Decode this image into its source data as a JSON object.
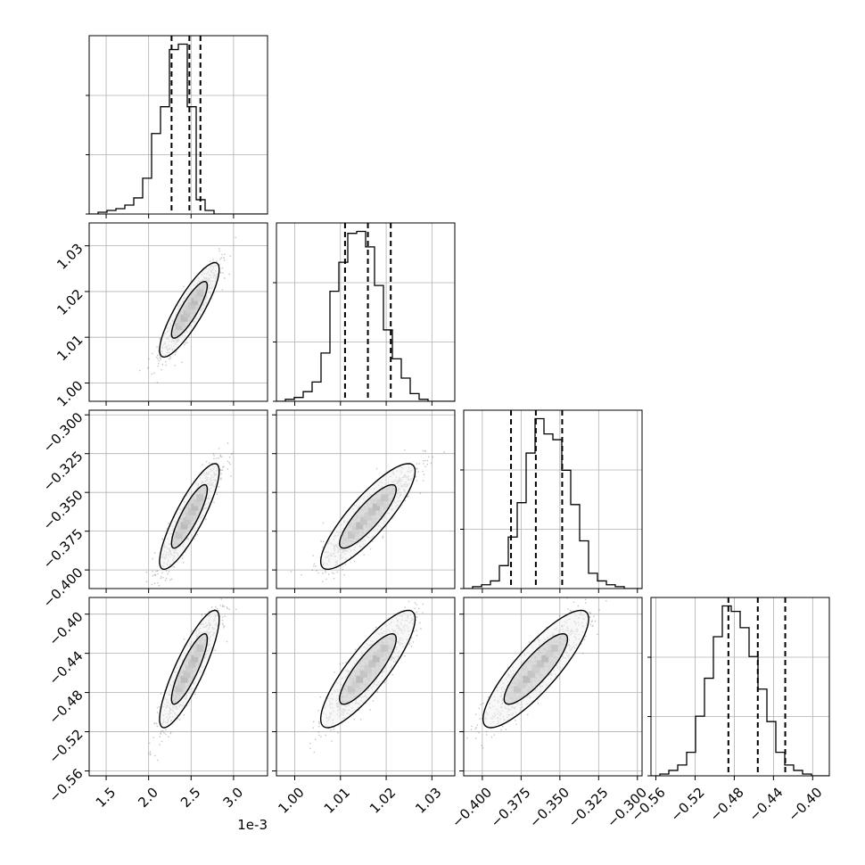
{
  "chart_data": {
    "type": "corner",
    "x_offset_label": "1e-3",
    "parameters": [
      {
        "range": [
          1.3,
          3.4
        ],
        "ticks": [
          1.5,
          2.0,
          2.5,
          3.0
        ],
        "tick_labels": [
          "1.5",
          "2.0",
          "2.5",
          "3.0"
        ],
        "quantiles": [
          2.27,
          2.48,
          2.61
        ]
      },
      {
        "range": [
          0.996,
          1.035
        ],
        "ticks": [
          1.0,
          1.01,
          1.02,
          1.03
        ],
        "tick_labels": [
          "1.00",
          "1.01",
          "1.02",
          "1.03"
        ],
        "quantiles": [
          1.011,
          1.016,
          1.021
        ]
      },
      {
        "range": [
          -0.412,
          -0.297
        ],
        "ticks": [
          -0.4,
          -0.375,
          -0.35,
          -0.325,
          -0.3
        ],
        "tick_labels": [
          "−0.400",
          "−0.375",
          "−0.350",
          "−0.325",
          "−0.300"
        ],
        "quantiles": [
          -0.3815,
          -0.3655,
          -0.3485
        ]
      },
      {
        "range": [
          -0.565,
          -0.383
        ],
        "ticks": [
          -0.56,
          -0.52,
          -0.48,
          -0.44,
          -0.4
        ],
        "tick_labels": [
          "−0.56",
          "−0.52",
          "−0.48",
          "−0.44",
          "−0.40"
        ],
        "quantiles": [
          -0.486,
          -0.456,
          -0.428
        ]
      }
    ],
    "histograms": [
      [
        0,
        1,
        2,
        3,
        5,
        9,
        20,
        45,
        60,
        92,
        95,
        60,
        8,
        2,
        0,
        0,
        0,
        0,
        0,
        0
      ],
      [
        0,
        1,
        2,
        5,
        10,
        25,
        57,
        72,
        87,
        88,
        80,
        60,
        37,
        22,
        12,
        4,
        1,
        0,
        0,
        0
      ],
      [
        0,
        1,
        2,
        4,
        12,
        27,
        45,
        71,
        89,
        81,
        78,
        62,
        44,
        25,
        8,
        4,
        2,
        1,
        0,
        0
      ],
      [
        0,
        1,
        3,
        6,
        13,
        33,
        54,
        77,
        94,
        91,
        82,
        66,
        48,
        30,
        13,
        6,
        3,
        1,
        0,
        0
      ]
    ],
    "grid": true,
    "legend": "none"
  }
}
